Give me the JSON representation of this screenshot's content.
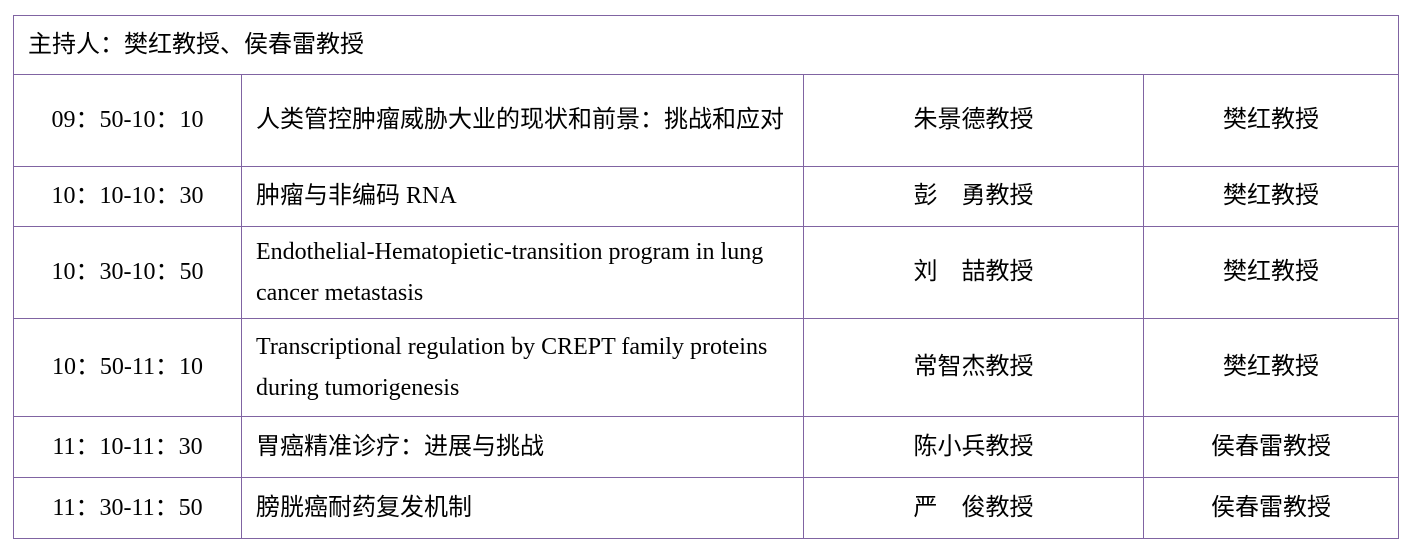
{
  "host_line": "主持人：樊红教授、侯春雷教授",
  "border_color": "#8064a2",
  "rows": [
    {
      "time": "09：50-10：10",
      "topic": "人类管控肿瘤威胁大业的现状和前景：挑战和应对",
      "speaker": "朱景德教授",
      "host": "樊红教授"
    },
    {
      "time": "10：10-10：30",
      "topic": "肿瘤与非编码 RNA",
      "speaker": "彭　勇教授",
      "host": "樊红教授"
    },
    {
      "time": "10：30-10：50",
      "topic": "Endothelial-Hematopietic-transition program in lung cancer metastasis",
      "speaker": "刘　喆教授",
      "host": "樊红教授"
    },
    {
      "time": "10：50-11：10",
      "topic": "Transcriptional regulation by CREPT family proteins during tumorigenesis",
      "speaker": "常智杰教授",
      "host": "樊红教授"
    },
    {
      "time": "11：10-11：30",
      "topic": "胃癌精准诊疗：进展与挑战",
      "speaker": "陈小兵教授",
      "host": "侯春雷教授"
    },
    {
      "time": "11：30-11：50",
      "topic": "膀胱癌耐药复发机制",
      "speaker": "严　俊教授",
      "host": "侯春雷教授"
    }
  ]
}
